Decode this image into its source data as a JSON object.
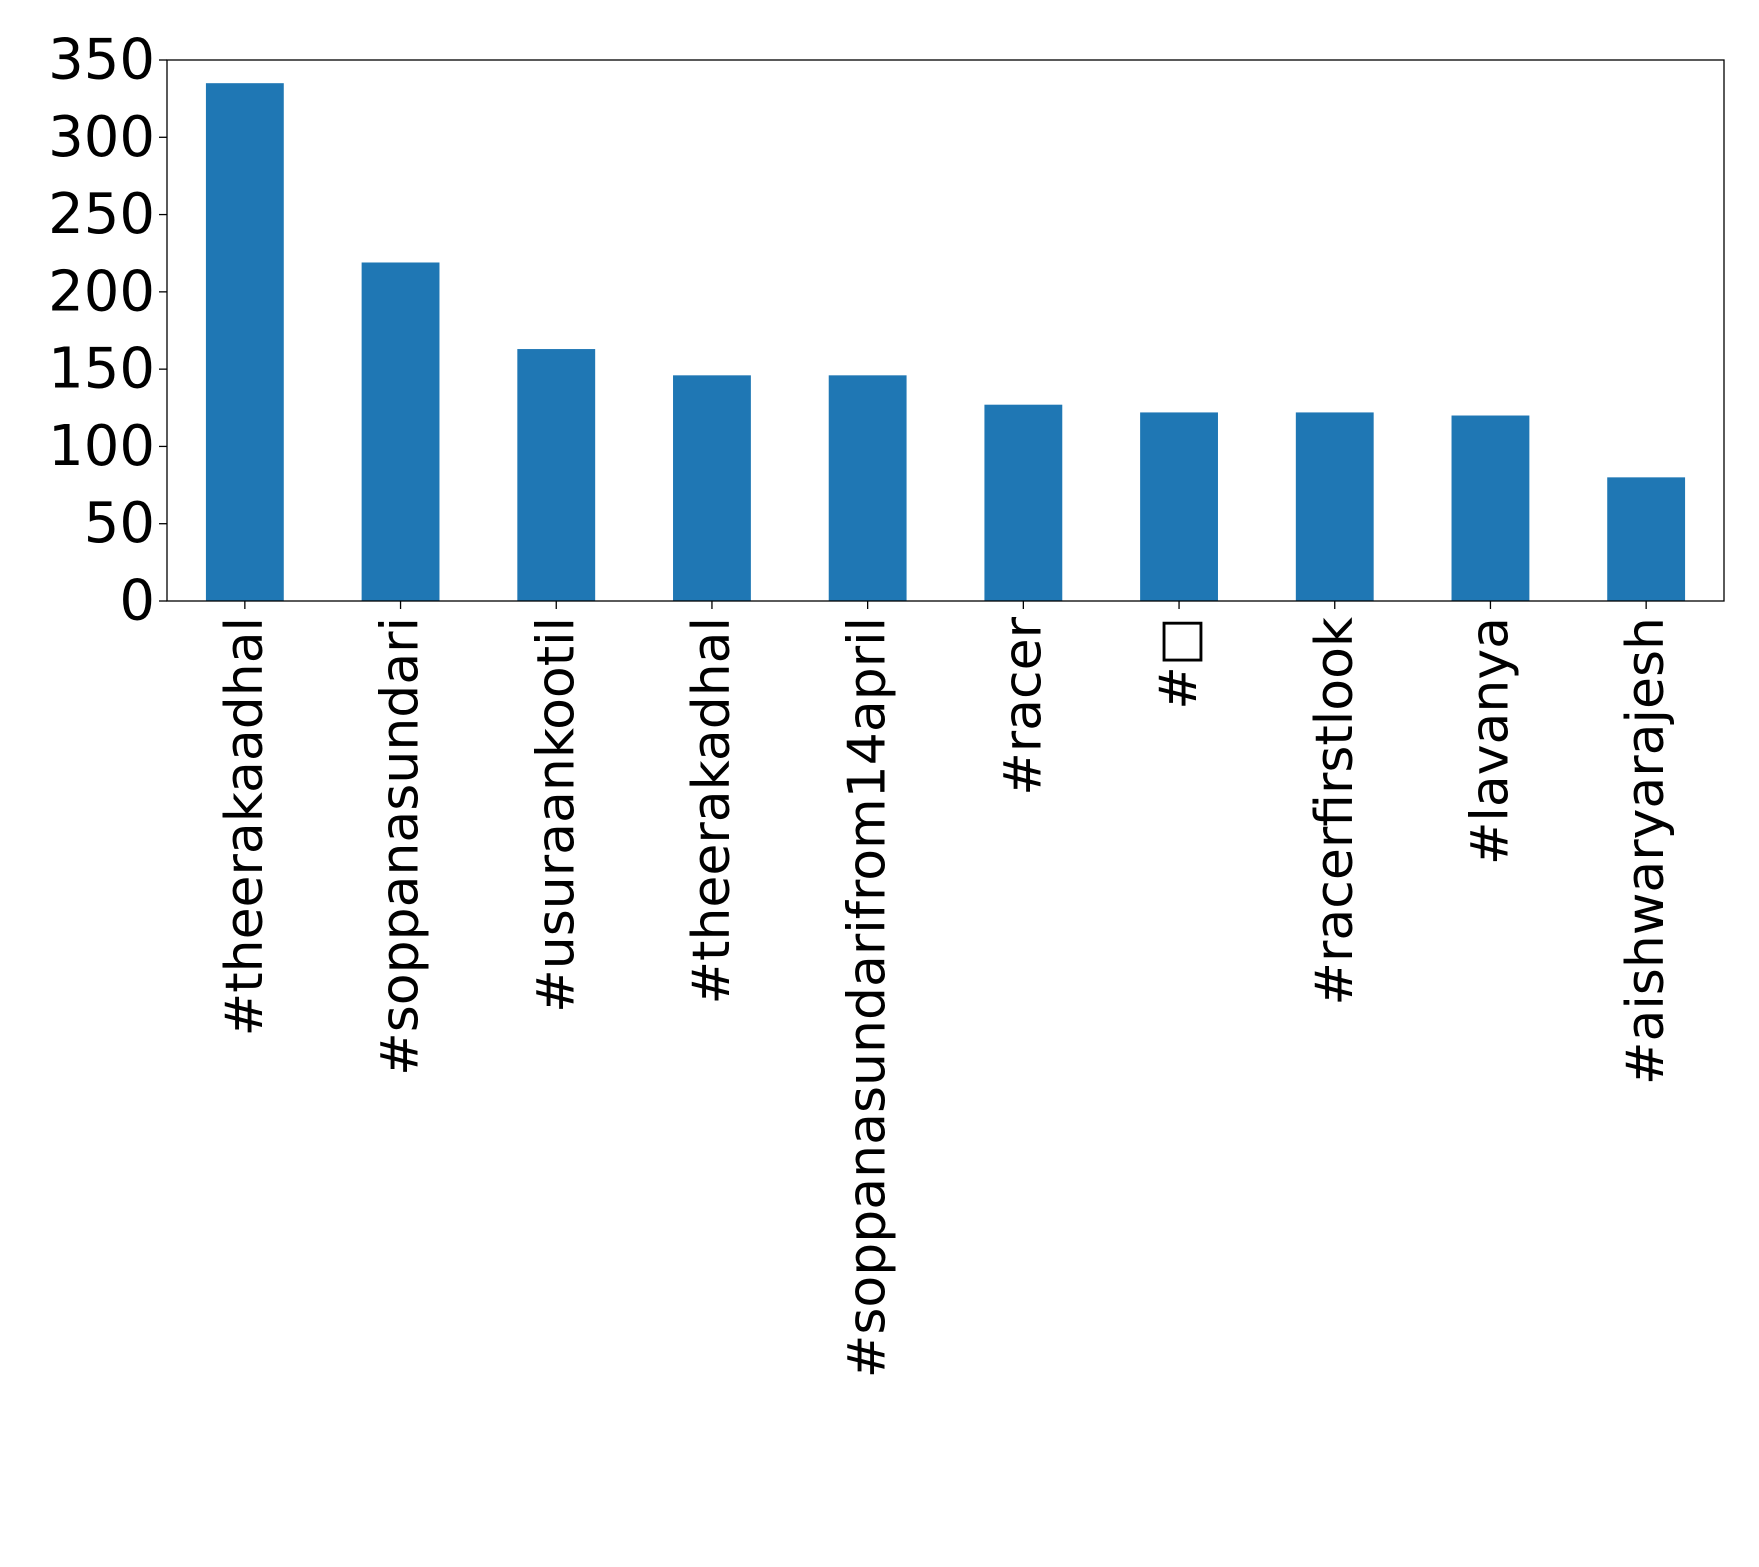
{
  "chart_data": {
    "type": "bar",
    "categories": [
      "#theerakaadhal",
      "#soppanasundari",
      "#usuraankootil",
      "#theerakadhal",
      "#soppanasundarifrom14april",
      "#racer",
      "#□",
      "#racerfirstlook",
      "#lavanya",
      "#aishwaryarajesh"
    ],
    "values": [
      335,
      219,
      163,
      146,
      146,
      127,
      122,
      122,
      120,
      80
    ],
    "ylim": [
      0,
      350
    ],
    "yticks": [
      0,
      50,
      100,
      150,
      200,
      250,
      300,
      350
    ],
    "title": "",
    "xlabel": "",
    "ylabel": "",
    "grid": false,
    "bar_color": "#1f77b4"
  }
}
